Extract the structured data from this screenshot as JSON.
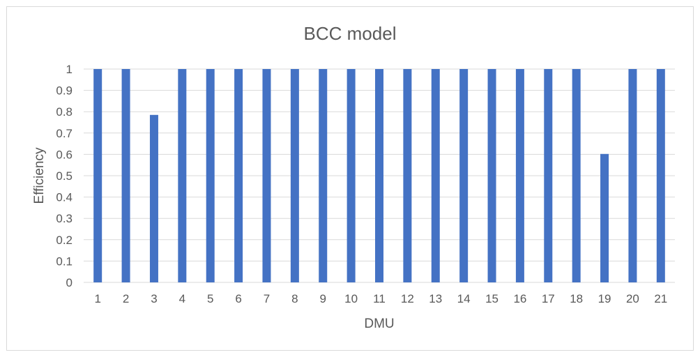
{
  "chart_data": {
    "type": "bar",
    "title": "BCC model",
    "xlabel": "DMU",
    "ylabel": "Efficiency",
    "categories": [
      "1",
      "2",
      "3",
      "4",
      "5",
      "6",
      "7",
      "8",
      "9",
      "10",
      "11",
      "12",
      "13",
      "14",
      "15",
      "16",
      "17",
      "18",
      "19",
      "20",
      "21"
    ],
    "values": [
      1,
      1,
      0.785,
      1,
      1,
      1,
      1,
      1,
      1,
      1,
      1,
      1,
      1,
      1,
      1,
      1,
      1,
      1,
      0.602,
      1,
      1
    ],
    "ylim": [
      0,
      1
    ],
    "yticks": [
      "0",
      "0.1",
      "0.2",
      "0.3",
      "0.4",
      "0.5",
      "0.6",
      "0.7",
      "0.8",
      "0.9",
      "1"
    ],
    "grid": true,
    "legend": "none",
    "bar_color": "#4472c4",
    "grid_color": "#d9d9d9",
    "text_color": "#595959"
  }
}
